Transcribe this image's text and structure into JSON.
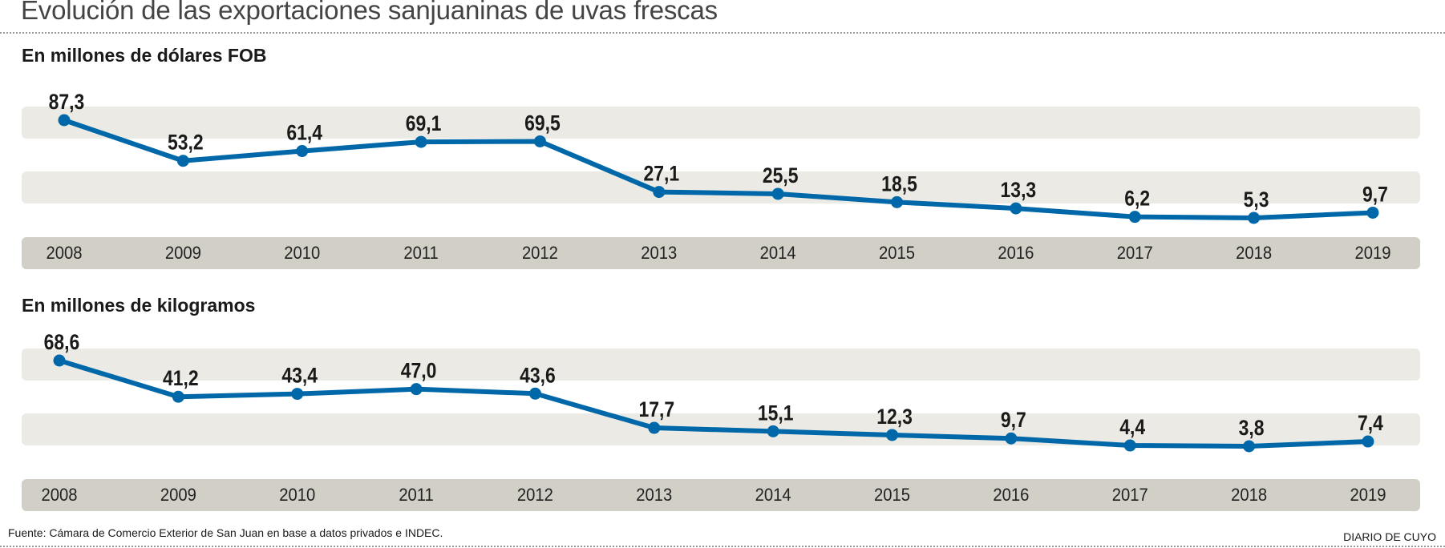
{
  "title": "Evolución de las exportaciones sanjuaninas de uvas frescas",
  "source": "Fuente: Cámara de Comercio Exterior de San Juan en base a datos privados e INDEC.",
  "brand": "DIARIO DE CUYO",
  "colors": {
    "line": "#0068A8",
    "band": "#EBEAE4",
    "axis_band": "#D1CFC6",
    "label": "#1A1A1A"
  },
  "chart_data": [
    {
      "type": "line",
      "title": "En millones de dólares FOB",
      "xlabel": "",
      "ylabel": "",
      "categories": [
        "2008",
        "2009",
        "2010",
        "2011",
        "2012",
        "2013",
        "2014",
        "2015",
        "2016",
        "2017",
        "2018",
        "2019"
      ],
      "values": [
        87.3,
        53.2,
        61.4,
        69.1,
        69.5,
        27.1,
        25.5,
        18.5,
        13.3,
        6.2,
        5.3,
        9.7
      ],
      "labels": [
        "87,3",
        "53,2",
        "61,4",
        "69,1",
        "69,5",
        "27,1",
        "25,5",
        "18,5",
        "13,3",
        "6,2",
        "5,3",
        "9,7"
      ],
      "grid": false,
      "legend": "none"
    },
    {
      "type": "line",
      "title": "En millones de kilogramos",
      "xlabel": "",
      "ylabel": "",
      "categories": [
        "2008",
        "2009",
        "2010",
        "2011",
        "2012",
        "2013",
        "2014",
        "2015",
        "2016",
        "2017",
        "2018",
        "2019"
      ],
      "values": [
        68.6,
        41.2,
        43.4,
        47.0,
        43.6,
        17.7,
        15.1,
        12.3,
        9.7,
        4.4,
        3.8,
        7.4
      ],
      "labels": [
        "68,6",
        "41,2",
        "43,4",
        "47,0",
        "43,6",
        "17,7",
        "15,1",
        "12,3",
        "9,7",
        "4,4",
        "3,8",
        "7,4"
      ],
      "grid": false,
      "legend": "none"
    }
  ]
}
